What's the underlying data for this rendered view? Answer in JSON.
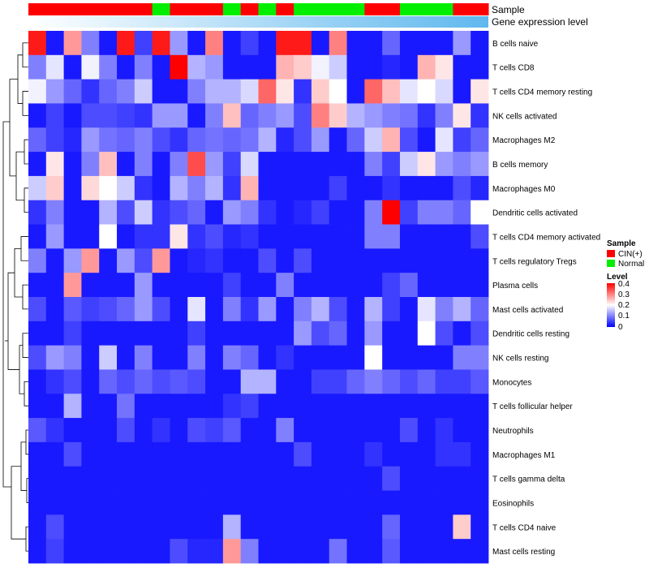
{
  "chart_data": {
    "type": "heatmap",
    "title": "",
    "annotation_tracks": [
      {
        "name": "Sample",
        "values": [
          "CIN(+)",
          "CIN(+)",
          "CIN(+)",
          "CIN(+)",
          "CIN(+)",
          "CIN(+)",
          "CIN(+)",
          "Normal",
          "CIN(+)",
          "CIN(+)",
          "CIN(+)",
          "Normal",
          "CIN(+)",
          "Normal",
          "CIN(+)",
          "Normal",
          "Normal",
          "Normal",
          "Normal",
          "CIN(+)",
          "CIN(+)",
          "Normal",
          "Normal",
          "Normal",
          "CIN(+)",
          "CIN(+)"
        ]
      },
      {
        "name": "Gene expression level",
        "gradient": [
          "#ffffff",
          "#5fb8ee"
        ]
      }
    ],
    "rows": [
      "B cells naive",
      "T cells CD8",
      "T cells CD4 memory resting",
      "NK cells activated",
      "Macrophages M2",
      "B cells memory",
      "Macrophages M0",
      "Dendritic cells activated",
      "T cells CD4 memory activated",
      "T cells regulatory  Tregs",
      "Plasma cells",
      "Mast cells activated",
      "Dendritic cells resting",
      "NK cells resting",
      "Monocytes",
      "T cells follicular helper",
      "Neutrophils",
      "Macrophages M1",
      "T cells gamma delta",
      "Eosinophils",
      "T cells CD4 naive",
      "Mast cells resting"
    ],
    "values": [
      [
        0.38,
        0.02,
        0.28,
        0.1,
        0.02,
        0.38,
        0.05,
        0.38,
        0.12,
        0.02,
        0.3,
        0.02,
        0.05,
        0.02,
        0.38,
        0.38,
        0.02,
        0.3,
        0.02,
        0.02,
        0.08,
        0.02,
        0.02,
        0.02,
        0.12,
        0.02
      ],
      [
        0.1,
        0.18,
        0.02,
        0.19,
        0.1,
        0.02,
        0.1,
        0.02,
        0.4,
        0.14,
        0.12,
        0.02,
        0.02,
        0.02,
        0.26,
        0.24,
        0.19,
        0.16,
        0.02,
        0.02,
        0.03,
        0.02,
        0.26,
        0.22,
        0.02,
        0.02
      ],
      [
        0.19,
        0.12,
        0.08,
        0.04,
        0.08,
        0.1,
        0.16,
        0.02,
        0.02,
        0.1,
        0.14,
        0.14,
        0.17,
        0.32,
        0.22,
        0.04,
        0.24,
        0.2,
        0.02,
        0.32,
        0.25,
        0.18,
        0.2,
        0.17,
        0.02,
        0.22
      ],
      [
        0.02,
        0.05,
        0.02,
        0.06,
        0.06,
        0.05,
        0.04,
        0.12,
        0.12,
        0.02,
        0.1,
        0.25,
        0.08,
        0.1,
        0.12,
        0.06,
        0.3,
        0.24,
        0.14,
        0.12,
        0.1,
        0.09,
        0.04,
        0.1,
        0.22,
        0.04
      ],
      [
        0.08,
        0.05,
        0.03,
        0.12,
        0.09,
        0.08,
        0.1,
        0.06,
        0.04,
        0.08,
        0.09,
        0.08,
        0.09,
        0.14,
        0.03,
        0.06,
        0.12,
        0.02,
        0.08,
        0.16,
        0.26,
        0.06,
        0.02,
        0.18,
        0.05,
        0.08
      ],
      [
        0.02,
        0.22,
        0.02,
        0.1,
        0.25,
        0.02,
        0.1,
        0.02,
        0.1,
        0.34,
        0.12,
        0.05,
        0.17,
        0.02,
        0.02,
        0.02,
        0.02,
        0.02,
        0.02,
        0.1,
        0.05,
        0.16,
        0.22,
        0.12,
        0.1,
        0.12
      ],
      [
        0.16,
        0.24,
        0.02,
        0.23,
        0.2,
        0.16,
        0.04,
        0.02,
        0.14,
        0.1,
        0.14,
        0.04,
        0.26,
        0.02,
        0.02,
        0.02,
        0.02,
        0.05,
        0.02,
        0.02,
        0.04,
        0.02,
        0.02,
        0.02,
        0.06,
        0.03
      ],
      [
        0.04,
        0.1,
        0.02,
        0.02,
        0.14,
        0.06,
        0.16,
        0.04,
        0.06,
        0.08,
        0.02,
        0.12,
        0.1,
        0.04,
        0.02,
        0.03,
        0.05,
        0.02,
        0.02,
        0.1,
        0.4,
        0.05,
        0.1,
        0.1,
        0.08,
        0.2
      ],
      [
        0.02,
        0.12,
        0.02,
        0.02,
        0.2,
        0.02,
        0.04,
        0.04,
        0.22,
        0.04,
        0.06,
        0.03,
        0.04,
        0.02,
        0.02,
        0.02,
        0.02,
        0.02,
        0.02,
        0.1,
        0.1,
        0.02,
        0.02,
        0.02,
        0.02,
        0.06
      ],
      [
        0.1,
        0.02,
        0.12,
        0.28,
        0.02,
        0.12,
        0.06,
        0.28,
        0.02,
        0.03,
        0.04,
        0.02,
        0.02,
        0.06,
        0.02,
        0.06,
        0.02,
        0.02,
        0.02,
        0.02,
        0.02,
        0.02,
        0.02,
        0.02,
        0.02,
        0.02
      ],
      [
        0.02,
        0.02,
        0.28,
        0.02,
        0.02,
        0.02,
        0.12,
        0.02,
        0.02,
        0.02,
        0.02,
        0.05,
        0.02,
        0.02,
        0.1,
        0.02,
        0.02,
        0.02,
        0.02,
        0.02,
        0.05,
        0.08,
        0.02,
        0.02,
        0.02,
        0.02
      ],
      [
        0.06,
        0.02,
        0.07,
        0.05,
        0.06,
        0.08,
        0.12,
        0.06,
        0.02,
        0.18,
        0.02,
        0.1,
        0.04,
        0.12,
        0.02,
        0.1,
        0.14,
        0.06,
        0.02,
        0.14,
        0.05,
        0.02,
        0.18,
        0.1,
        0.14,
        0.08
      ],
      [
        0.02,
        0.02,
        0.05,
        0.02,
        0.02,
        0.02,
        0.02,
        0.02,
        0.02,
        0.05,
        0.02,
        0.02,
        0.02,
        0.02,
        0.02,
        0.12,
        0.06,
        0.08,
        0.02,
        0.12,
        0.02,
        0.02,
        0.2,
        0.06,
        0.02,
        0.06
      ],
      [
        0.06,
        0.12,
        0.1,
        0.02,
        0.16,
        0.02,
        0.1,
        0.02,
        0.02,
        0.1,
        0.02,
        0.1,
        0.08,
        0.02,
        0.04,
        0.02,
        0.02,
        0.02,
        0.02,
        0.2,
        0.02,
        0.02,
        0.02,
        0.02,
        0.1,
        0.1
      ],
      [
        0.02,
        0.04,
        0.06,
        0.02,
        0.08,
        0.06,
        0.08,
        0.06,
        0.07,
        0.06,
        0.02,
        0.02,
        0.14,
        0.14,
        0.02,
        0.02,
        0.05,
        0.05,
        0.08,
        0.1,
        0.08,
        0.06,
        0.08,
        0.05,
        0.05,
        0.07
      ],
      [
        0.02,
        0.02,
        0.14,
        0.02,
        0.02,
        0.09,
        0.02,
        0.02,
        0.02,
        0.02,
        0.02,
        0.04,
        0.05,
        0.02,
        0.02,
        0.02,
        0.02,
        0.02,
        0.02,
        0.02,
        0.02,
        0.02,
        0.02,
        0.02,
        0.02,
        0.02
      ],
      [
        0.07,
        0.04,
        0.02,
        0.02,
        0.02,
        0.06,
        0.02,
        0.04,
        0.02,
        0.06,
        0.05,
        0.07,
        0.02,
        0.02,
        0.1,
        0.02,
        0.02,
        0.02,
        0.02,
        0.02,
        0.02,
        0.06,
        0.02,
        0.04,
        0.02,
        0.02
      ],
      [
        0.02,
        0.02,
        0.06,
        0.02,
        0.02,
        0.02,
        0.02,
        0.02,
        0.02,
        0.02,
        0.02,
        0.02,
        0.02,
        0.02,
        0.02,
        0.06,
        0.02,
        0.02,
        0.02,
        0.04,
        0.02,
        0.02,
        0.02,
        0.04,
        0.04,
        0.02
      ],
      [
        0.02,
        0.02,
        0.02,
        0.02,
        0.02,
        0.02,
        0.02,
        0.02,
        0.02,
        0.02,
        0.02,
        0.02,
        0.02,
        0.02,
        0.02,
        0.02,
        0.02,
        0.02,
        0.02,
        0.02,
        0.06,
        0.02,
        0.02,
        0.02,
        0.02,
        0.02
      ],
      [
        0.02,
        0.02,
        0.02,
        0.02,
        0.02,
        0.02,
        0.02,
        0.02,
        0.02,
        0.02,
        0.02,
        0.02,
        0.02,
        0.02,
        0.02,
        0.02,
        0.02,
        0.02,
        0.02,
        0.02,
        0.02,
        0.02,
        0.02,
        0.02,
        0.02,
        0.02
      ],
      [
        0.02,
        0.06,
        0.02,
        0.02,
        0.02,
        0.02,
        0.02,
        0.02,
        0.02,
        0.02,
        0.02,
        0.14,
        0.02,
        0.02,
        0.02,
        0.02,
        0.02,
        0.02,
        0.02,
        0.02,
        0.08,
        0.02,
        0.02,
        0.02,
        0.24,
        0.02
      ],
      [
        0.02,
        0.05,
        0.02,
        0.02,
        0.02,
        0.02,
        0.02,
        0.02,
        0.06,
        0.03,
        0.03,
        0.28,
        0.1,
        0.02,
        0.02,
        0.02,
        0.02,
        0.09,
        0.02,
        0.02,
        0.07,
        0.02,
        0.02,
        0.02,
        0.02,
        0.02
      ]
    ],
    "legend": {
      "sample_title": "Sample",
      "sample_items": [
        {
          "label": "CIN(+)",
          "color": "#ff0000"
        },
        {
          "label": "Normal",
          "color": "#00ee00"
        }
      ],
      "level_title": "Level",
      "level_ticks": [
        "0.4",
        "0.3",
        "0.2",
        "0.1",
        "0"
      ],
      "level_range": [
        0,
        0.4
      ],
      "level_colors": [
        "#0000ff",
        "#ffffff",
        "#ff0000"
      ]
    }
  }
}
